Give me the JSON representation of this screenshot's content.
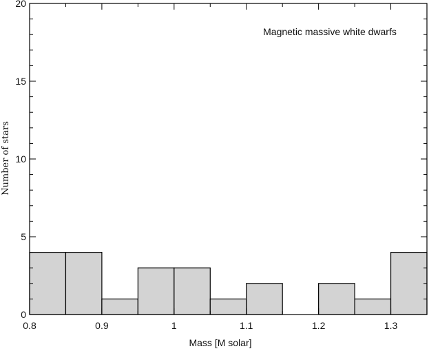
{
  "chart_data": {
    "type": "bar",
    "title": "",
    "annotation": "Magnetic massive white dwarfs",
    "xlabel": "Mass [M solar]",
    "ylabel": "Number of stars",
    "xlim": [
      0.8,
      1.35
    ],
    "ylim": [
      0,
      20
    ],
    "bin_width": 0.05,
    "bins": [
      {
        "x0": 0.8,
        "x1": 0.85,
        "count": 4
      },
      {
        "x0": 0.85,
        "x1": 0.9,
        "count": 4
      },
      {
        "x0": 0.9,
        "x1": 0.95,
        "count": 1
      },
      {
        "x0": 0.95,
        "x1": 1.0,
        "count": 3
      },
      {
        "x0": 1.0,
        "x1": 1.05,
        "count": 3
      },
      {
        "x0": 1.05,
        "x1": 1.1,
        "count": 1
      },
      {
        "x0": 1.1,
        "x1": 1.15,
        "count": 2
      },
      {
        "x0": 1.15,
        "x1": 1.2,
        "count": 0
      },
      {
        "x0": 1.2,
        "x1": 1.25,
        "count": 2
      },
      {
        "x0": 1.25,
        "x1": 1.3,
        "count": 1
      },
      {
        "x0": 1.3,
        "x1": 1.35,
        "count": 4
      }
    ],
    "x_ticks": [
      "0.8",
      "0.9",
      "1",
      "1.1",
      "1.2",
      "1.3"
    ],
    "x_tick_values": [
      0.8,
      0.9,
      1.0,
      1.1,
      1.2,
      1.3
    ],
    "y_ticks": [
      "0",
      "5",
      "10",
      "15",
      "20"
    ],
    "y_tick_values": [
      0,
      5,
      10,
      15,
      20
    ],
    "bar_color": "#d3d3d3",
    "edge_color": "#000000",
    "grid": false
  }
}
